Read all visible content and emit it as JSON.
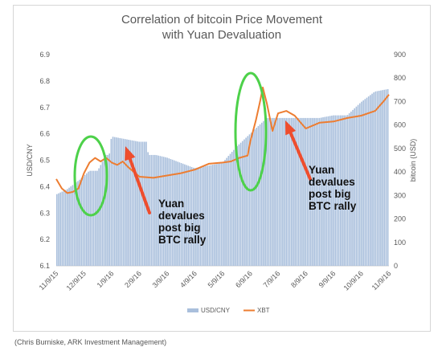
{
  "chart_data": {
    "type": "bar+line",
    "title_lines": [
      "Correlation of bitcoin Price Movement",
      "with Yuan Devaluation"
    ],
    "ylabel_left": "USD/CNY",
    "ylabel_right": "bitcoin (USD)",
    "ylim_left": [
      6.1,
      6.9
    ],
    "ylim_right": [
      0,
      900
    ],
    "left_ticks": [
      "6.9",
      "6.8",
      "6.7",
      "6.6",
      "6.5",
      "6.4",
      "6.3",
      "6.2",
      "6.1"
    ],
    "right_ticks": [
      "900",
      "800",
      "700",
      "600",
      "500",
      "400",
      "300",
      "200",
      "100",
      "0"
    ],
    "x_ticks": [
      "11/9/15",
      "12/9/15",
      "1/9/16",
      "2/9/16",
      "3/9/16",
      "4/9/16",
      "5/9/16",
      "6/9/16",
      "7/9/16",
      "8/9/16",
      "9/9/16",
      "10/9/16",
      "11/9/16"
    ],
    "legend": {
      "placement": "bottom-center",
      "items": [
        "USD/CNY",
        "XBT"
      ]
    },
    "series": [
      {
        "name": "USD/CNY",
        "kind": "bar",
        "color": "#a9bfdc",
        "anchors": [
          [
            0,
            6.37
          ],
          [
            0.4,
            6.39
          ],
          [
            0.9,
            6.43
          ],
          [
            1.2,
            6.46
          ],
          [
            1.5,
            6.46
          ],
          [
            1.8,
            6.52
          ],
          [
            1.92,
            6.52
          ],
          [
            2.0,
            6.59
          ],
          [
            2.5,
            6.58
          ],
          [
            3.0,
            6.57
          ],
          [
            3.3,
            6.57
          ],
          [
            3.32,
            6.52
          ],
          [
            3.6,
            6.52
          ],
          [
            4.0,
            6.51
          ],
          [
            5.0,
            6.47
          ],
          [
            6.0,
            6.49
          ],
          [
            6.5,
            6.55
          ],
          [
            7.0,
            6.6
          ],
          [
            7.6,
            6.66
          ],
          [
            8.0,
            6.66
          ],
          [
            8.5,
            6.66
          ],
          [
            9.0,
            6.66
          ],
          [
            9.5,
            6.66
          ],
          [
            10.0,
            6.67
          ],
          [
            10.5,
            6.67
          ],
          [
            11.0,
            6.72
          ],
          [
            11.5,
            6.76
          ],
          [
            12.0,
            6.77
          ]
        ]
      },
      {
        "name": "XBT",
        "kind": "line",
        "color": "#ed7d31",
        "anchors": [
          [
            0,
            370
          ],
          [
            0.2,
            330
          ],
          [
            0.4,
            310
          ],
          [
            0.6,
            315
          ],
          [
            0.8,
            330
          ],
          [
            1.0,
            395
          ],
          [
            1.2,
            440
          ],
          [
            1.4,
            460
          ],
          [
            1.6,
            445
          ],
          [
            1.8,
            460
          ],
          [
            2.0,
            440
          ],
          [
            2.2,
            430
          ],
          [
            2.4,
            445
          ],
          [
            2.6,
            420
          ],
          [
            2.8,
            400
          ],
          [
            3.0,
            380
          ],
          [
            3.5,
            375
          ],
          [
            4.0,
            385
          ],
          [
            4.5,
            395
          ],
          [
            5.0,
            410
          ],
          [
            5.5,
            435
          ],
          [
            6.0,
            440
          ],
          [
            6.3,
            445
          ],
          [
            6.6,
            460
          ],
          [
            6.9,
            470
          ],
          [
            7.0,
            530
          ],
          [
            7.2,
            620
          ],
          [
            7.35,
            700
          ],
          [
            7.45,
            760
          ],
          [
            7.6,
            690
          ],
          [
            7.8,
            575
          ],
          [
            8.0,
            650
          ],
          [
            8.3,
            660
          ],
          [
            8.6,
            640
          ],
          [
            9.0,
            585
          ],
          [
            9.5,
            610
          ],
          [
            10.0,
            615
          ],
          [
            10.5,
            630
          ],
          [
            11.0,
            640
          ],
          [
            11.5,
            660
          ],
          [
            11.8,
            700
          ],
          [
            12.0,
            730
          ]
        ]
      }
    ],
    "annotations": [
      {
        "lines": [
          "Yuan",
          "devalues",
          "post big",
          "BTC rally"
        ]
      },
      {
        "lines": [
          "Yuan",
          "devalues",
          "post big",
          "BTC rally"
        ]
      }
    ],
    "colors": {
      "highlight_circle": "#4dd14a",
      "arrow": "#ee4d2d"
    }
  },
  "caption": "(Chris Burniske, ARK Investment Management)"
}
